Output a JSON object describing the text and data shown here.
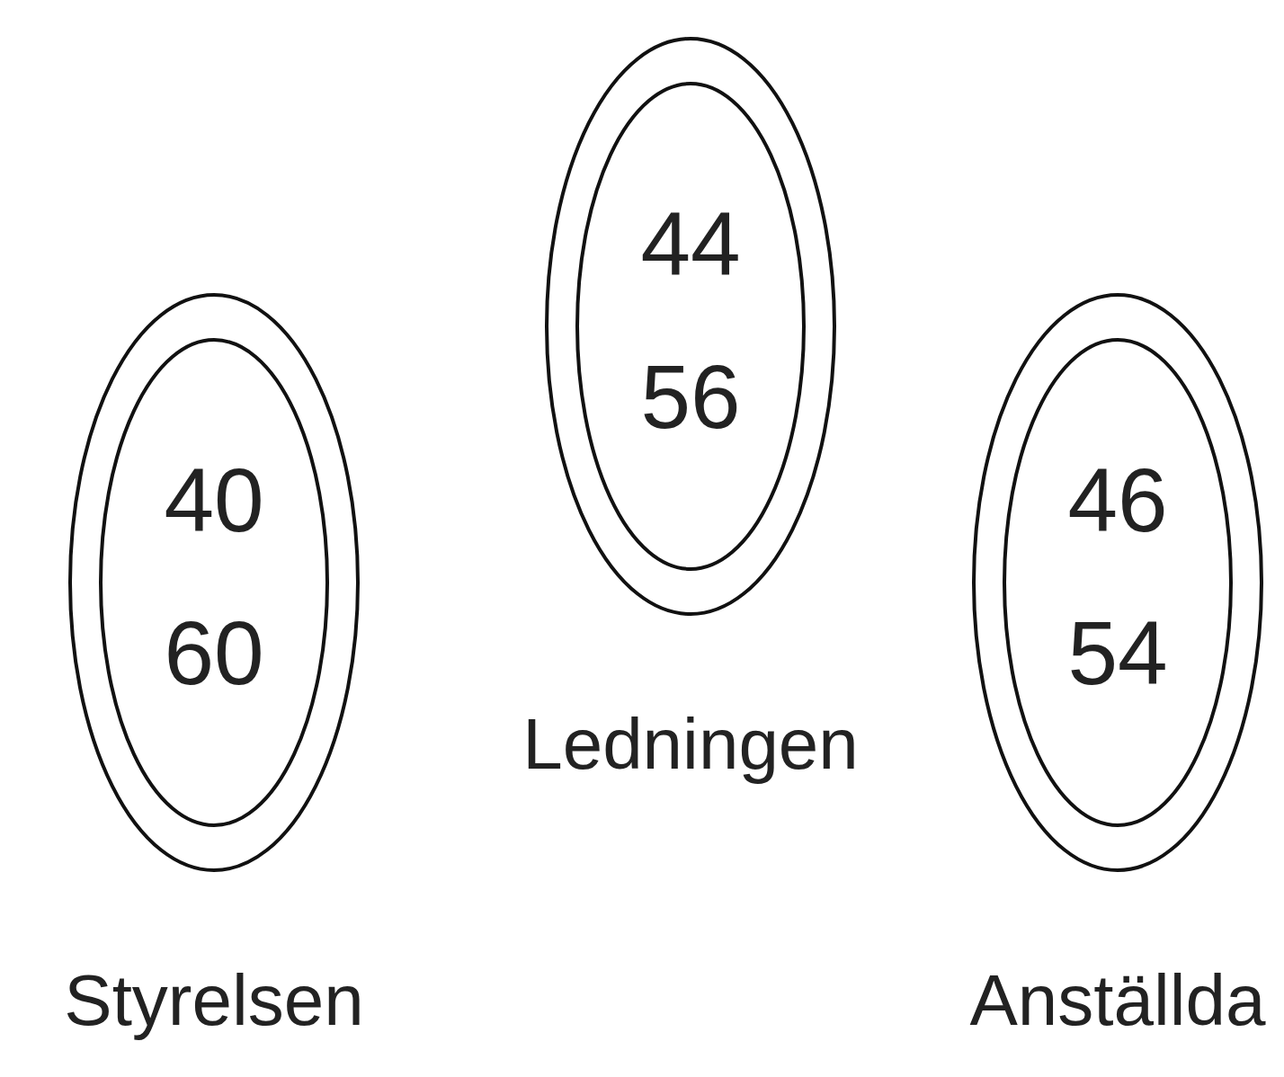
{
  "chart_data": [
    {
      "type": "other",
      "title": "Styrelsen",
      "values": [
        40,
        60
      ],
      "data_labels": true
    },
    {
      "type": "other",
      "title": "Ledningen",
      "values": [
        44,
        56
      ],
      "data_labels": true
    },
    {
      "type": "other",
      "title": "Anställda",
      "values": [
        46,
        54
      ],
      "data_labels": true
    }
  ]
}
